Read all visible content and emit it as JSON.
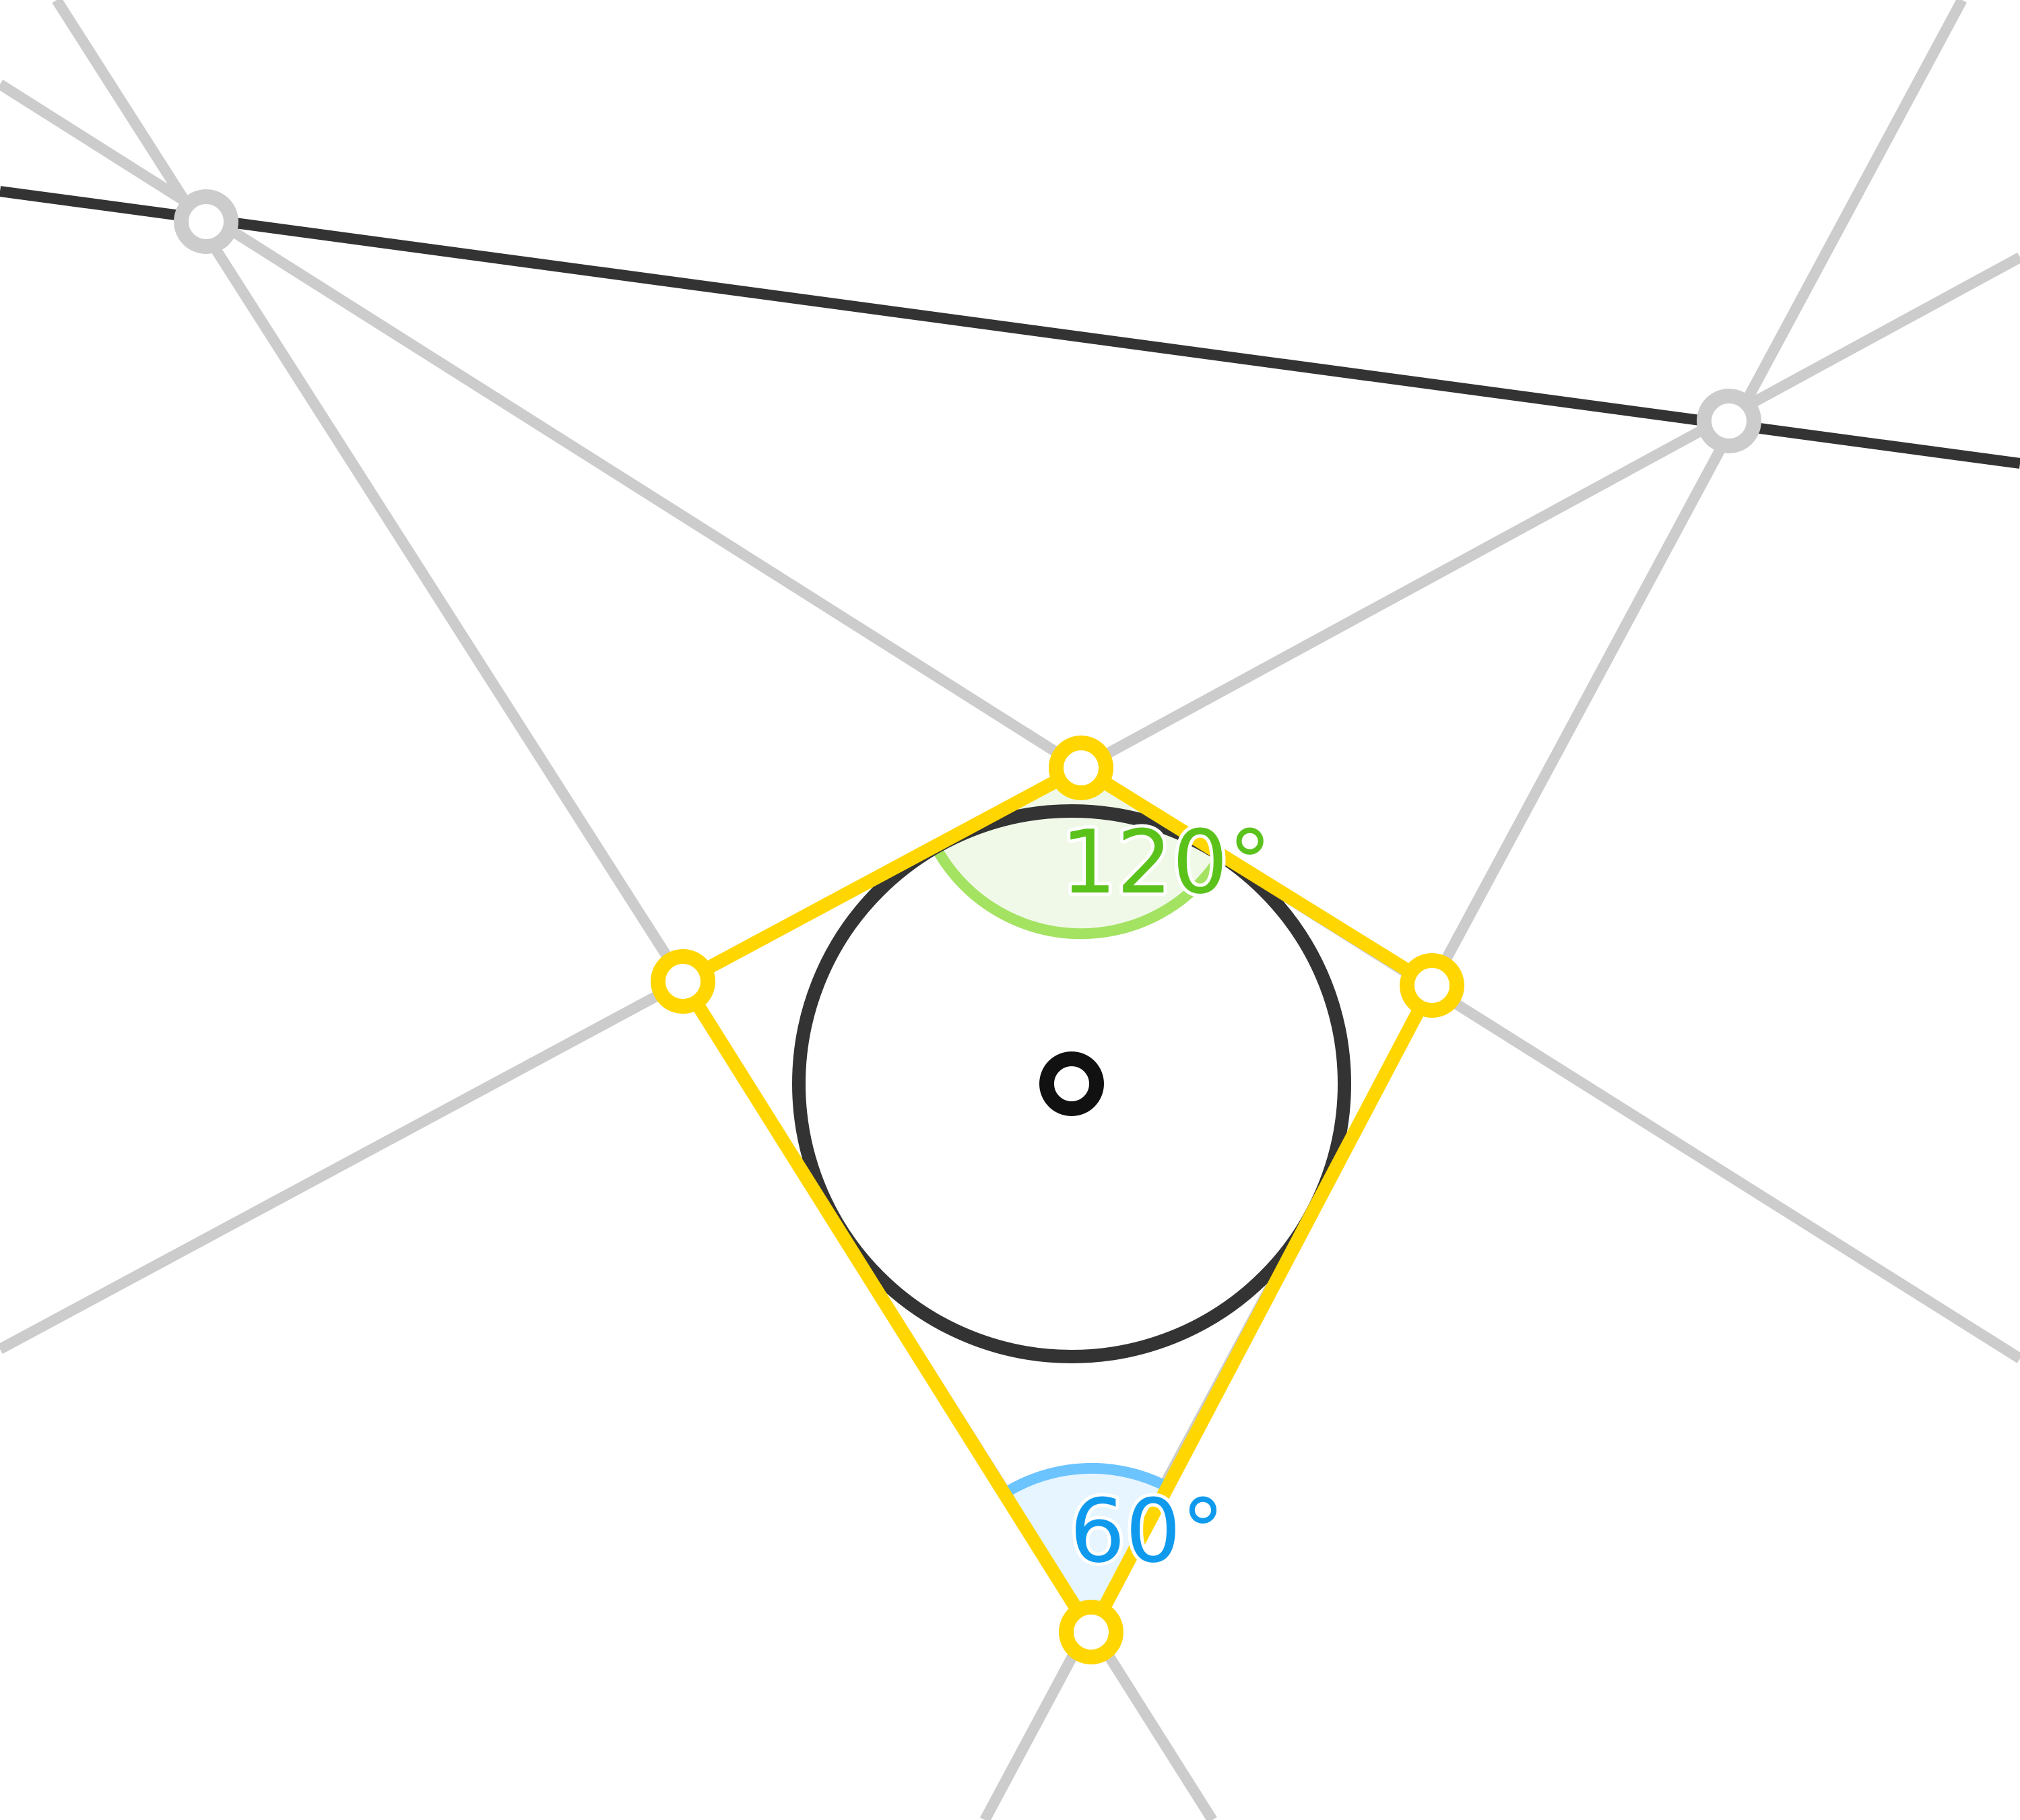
{
  "colors": {
    "background": "#ffffff",
    "construction": "#cccccc",
    "dark": "#333333",
    "quad": "#ffd600",
    "angle_top_fill": "#f0f9e8",
    "angle_top_stroke": "#a4e262",
    "angle_top_text": "#5bc21c",
    "angle_bottom_fill": "#e6f5ff",
    "angle_bottom_stroke": "#6cc4ff",
    "angle_bottom_text": "#0f9aee"
  },
  "angles": {
    "top": {
      "label": "120°",
      "value": 120
    },
    "bottom": {
      "label": "60°",
      "value": 60
    }
  }
}
